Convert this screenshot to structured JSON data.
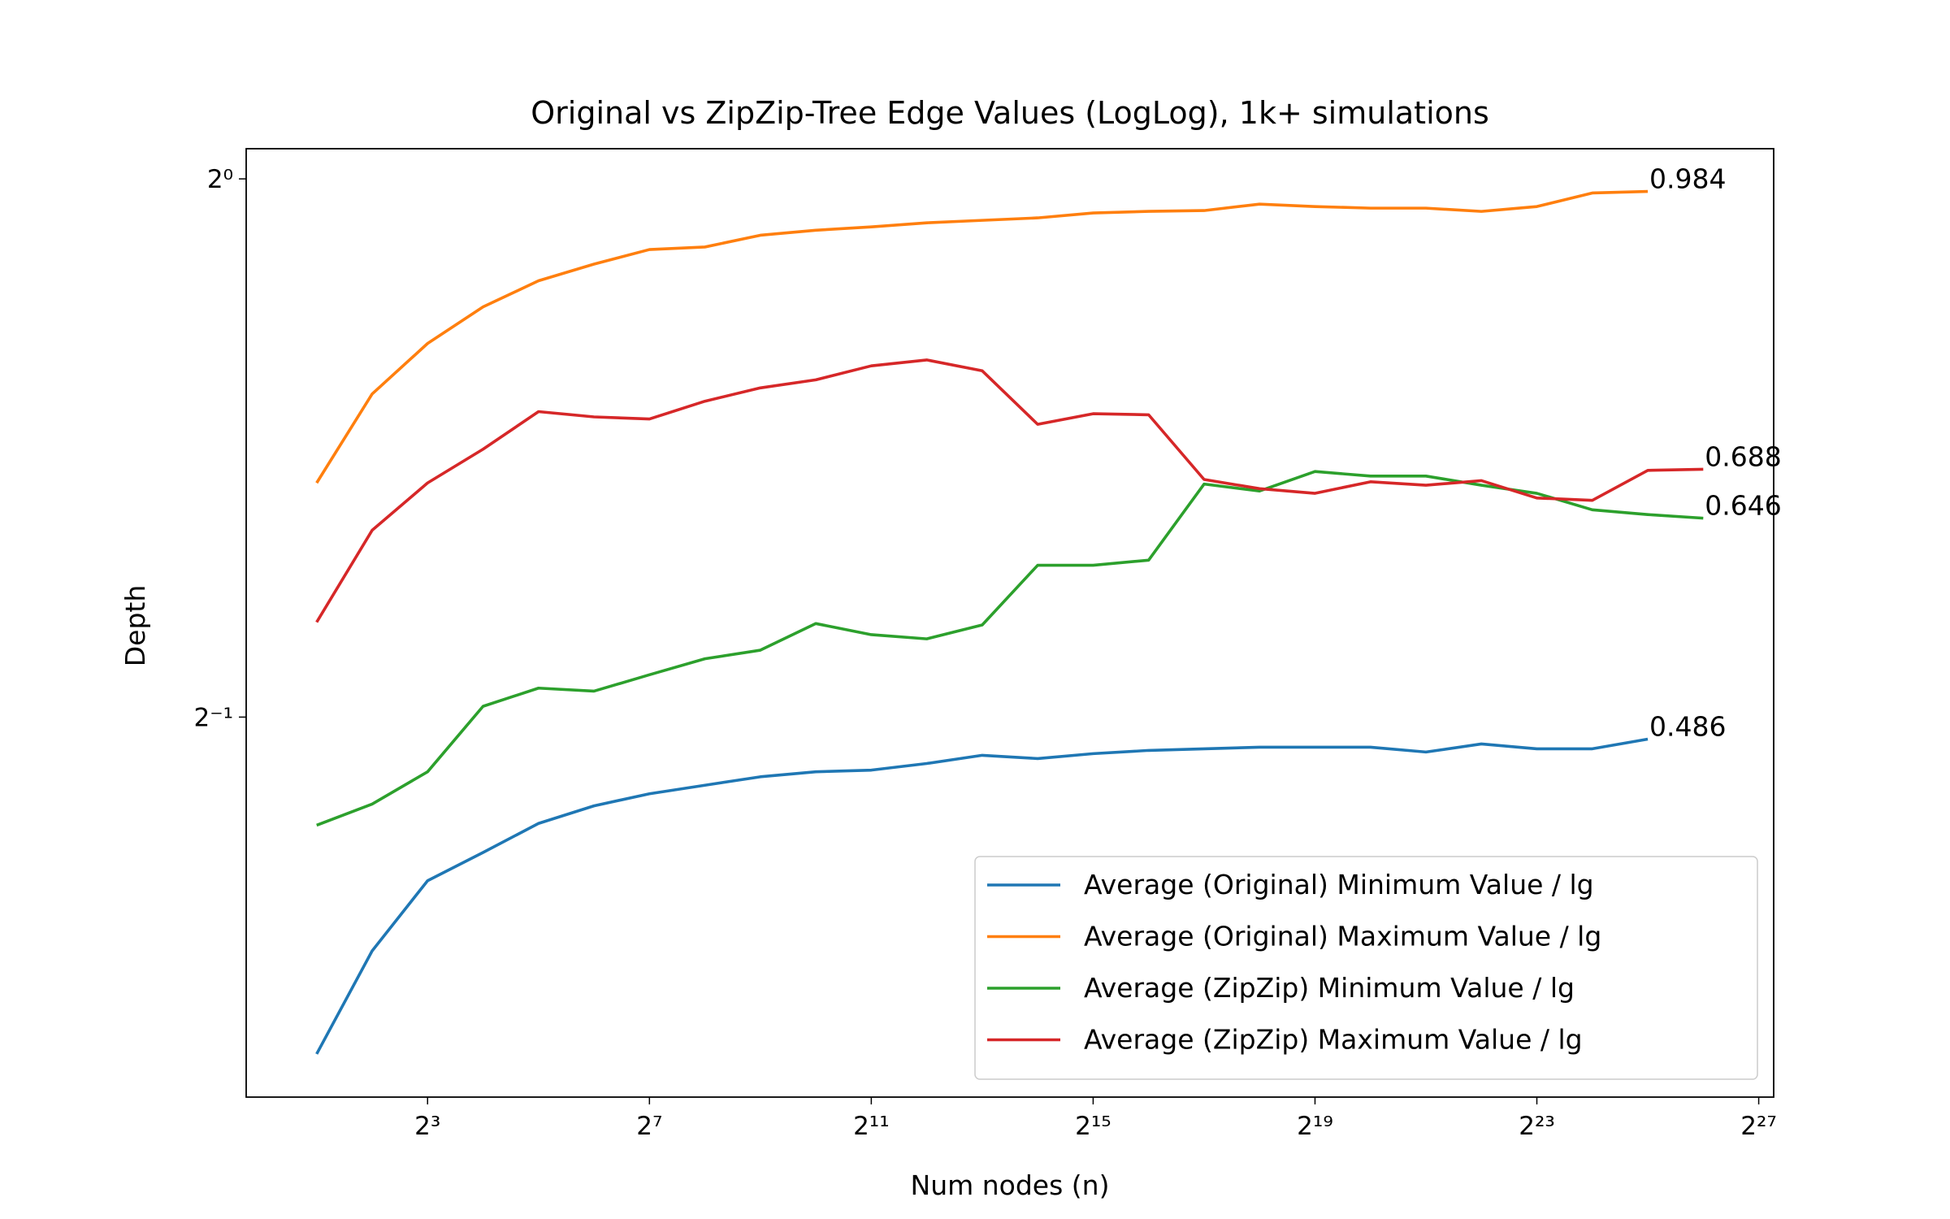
{
  "chart_data": {
    "type": "line",
    "title": "Original vs ZipZip-Tree Edge Values (LogLog), 1k+ simulations",
    "x_label": "Num nodes (n)",
    "y_label": "Depth",
    "xscale": "log",
    "yscale": "log",
    "xlim": [
      0.829,
      161840000
    ],
    "ylim": [
      0.3065,
      1.0396
    ],
    "xticks": [
      {
        "value": 8,
        "label": "2³"
      },
      {
        "value": 128,
        "label": "2⁷"
      },
      {
        "value": 2048,
        "label": "2¹¹"
      },
      {
        "value": 32768,
        "label": "2¹⁵"
      },
      {
        "value": 524288,
        "label": "2¹⁹"
      },
      {
        "value": 8388608,
        "label": "2²³"
      },
      {
        "value": 134217728,
        "label": "2²⁷"
      }
    ],
    "yticks": [
      {
        "value": 0.5,
        "label": "2⁻¹"
      },
      {
        "value": 1,
        "label": "2⁰"
      }
    ],
    "legend": "lower right",
    "x": [
      2,
      4,
      8,
      16,
      32,
      64,
      128,
      256,
      512,
      1024,
      2048,
      4096,
      8192,
      16384,
      32768,
      65536,
      131072,
      262144,
      524288,
      1048576,
      2097152,
      4194304,
      8388608,
      16777216,
      33554432,
      67108864
    ],
    "series": [
      {
        "name": "Average (Original) Minimum Value / lg",
        "color": "#1f77b4",
        "end_label": "0.486",
        "values": [
          0.324,
          0.37,
          0.405,
          0.42,
          0.436,
          0.446,
          0.453,
          0.458,
          0.463,
          0.466,
          0.467,
          0.471,
          0.476,
          0.474,
          0.477,
          0.479,
          0.48,
          0.481,
          0.481,
          0.481,
          0.478,
          0.483,
          0.48,
          0.48,
          0.486,
          null
        ]
      },
      {
        "name": "Average (Original) Maximum Value / lg",
        "color": "#ff7f0e",
        "end_label": "0.984",
        "values": [
          0.676,
          0.758,
          0.809,
          0.848,
          0.877,
          0.896,
          0.913,
          0.916,
          0.93,
          0.936,
          0.94,
          0.945,
          0.948,
          0.951,
          0.957,
          0.959,
          0.96,
          0.968,
          0.965,
          0.963,
          0.963,
          0.959,
          0.965,
          0.982,
          0.984,
          null
        ]
      },
      {
        "name": "Average (ZipZip) Minimum Value / lg",
        "color": "#2ca02c",
        "end_label": "0.646",
        "values": [
          0.435,
          0.447,
          0.466,
          0.507,
          0.519,
          0.517,
          0.528,
          0.539,
          0.545,
          0.564,
          0.556,
          0.553,
          0.563,
          0.608,
          0.608,
          0.612,
          0.675,
          0.669,
          0.686,
          0.682,
          0.682,
          0.674,
          0.667,
          0.653,
          0.649,
          0.646
        ]
      },
      {
        "name": "Average (ZipZip) Maximum Value / lg",
        "color": "#d62728",
        "end_label": "0.688",
        "values": [
          0.565,
          0.636,
          0.676,
          0.706,
          0.741,
          0.736,
          0.734,
          0.751,
          0.764,
          0.772,
          0.786,
          0.792,
          0.781,
          0.729,
          0.739,
          0.738,
          0.679,
          0.671,
          0.667,
          0.677,
          0.674,
          0.678,
          0.663,
          0.661,
          0.687,
          0.688
        ]
      }
    ]
  }
}
